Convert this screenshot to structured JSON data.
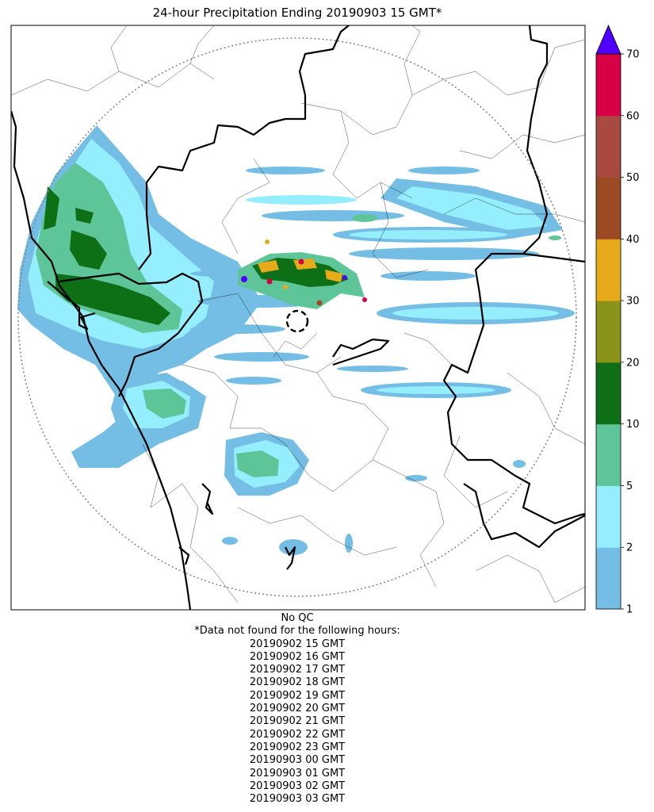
{
  "title": "24-hour Precipitation Ending 20190903 15 GMT*",
  "colorbar": {
    "ticks": [
      "1",
      "2",
      "5",
      "10",
      "20",
      "30",
      "40",
      "50",
      "60",
      "70"
    ],
    "colors": [
      "#74bde4",
      "#95eefd",
      "#5ec598",
      "#0d7016",
      "#8a9419",
      "#e7aa1b",
      "#9b4b24",
      "#a84a40",
      "#d70046"
    ],
    "extend_color": "#5000ff"
  },
  "precip_colors": {
    "light": "#74bde4",
    "cyan": "#95eefd",
    "mid_green": "#5ec598",
    "dark_green": "#0d7016"
  },
  "notes": {
    "qc": "No QC",
    "missing_header": "*Data not found for the following hours:",
    "missing_hours": [
      "20190902 15 GMT",
      "20190902 16 GMT",
      "20190902 17 GMT",
      "20190902 18 GMT",
      "20190902 19 GMT",
      "20190902 20 GMT",
      "20190902 21 GMT",
      "20190902 22 GMT",
      "20190902 23 GMT",
      "20190903 00 GMT",
      "20190903 01 GMT",
      "20190903 02 GMT",
      "20190903 03 GMT"
    ]
  }
}
